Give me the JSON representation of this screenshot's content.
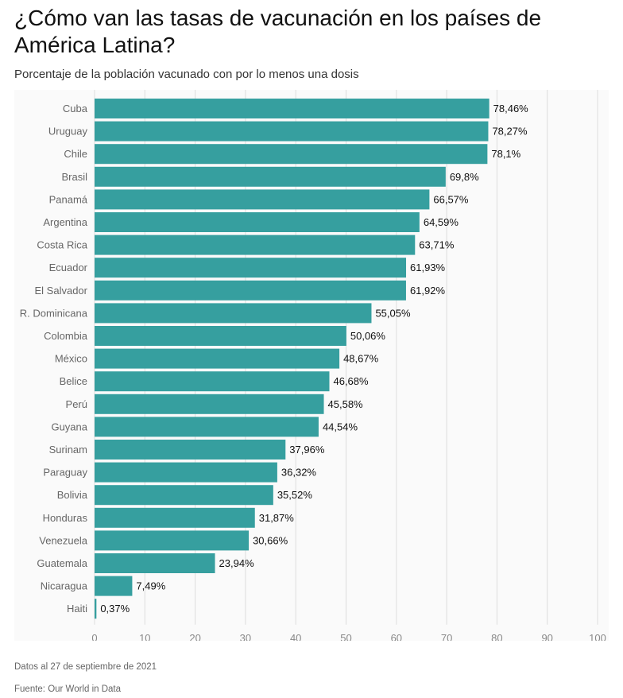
{
  "header": {
    "title": "¿Cómo van las tasas de vacunación en los países de América Latina?",
    "subtitle": "Porcentaje de la población vacunado con por lo menos una dosis"
  },
  "footer": {
    "date_note": "Datos al 27 de septiembre de 2021",
    "source": "Fuente: Our World in Data"
  },
  "colors": {
    "bar": "#369f9f",
    "grid": "#dddddd",
    "background": "#fafafa"
  },
  "chart_data": {
    "type": "bar",
    "orientation": "horizontal",
    "title": "¿Cómo van las tasas de vacunación en los países de América Latina?",
    "subtitle": "Porcentaje de la población vacunado con por lo menos una dosis",
    "xlabel": "",
    "ylabel": "",
    "xlim": [
      0,
      100
    ],
    "xticks": [
      0,
      10,
      20,
      30,
      40,
      50,
      60,
      70,
      80,
      90,
      100
    ],
    "grid": true,
    "categories": [
      "Cuba",
      "Uruguay",
      "Chile",
      "Brasil",
      "Panamá",
      "Argentina",
      "Costa Rica",
      "Ecuador",
      "El Salvador",
      "R. Dominicana",
      "Colombia",
      "México",
      "Belice",
      "Perú",
      "Guyana",
      "Surinam",
      "Paraguay",
      "Bolivia",
      "Honduras",
      "Venezuela",
      "Guatemala",
      "Nicaragua",
      "Haiti"
    ],
    "values": [
      78.46,
      78.27,
      78.1,
      69.8,
      66.57,
      64.59,
      63.71,
      61.93,
      61.92,
      55.05,
      50.06,
      48.67,
      46.68,
      45.58,
      44.54,
      37.96,
      36.32,
      35.52,
      31.87,
      30.66,
      23.94,
      7.49,
      0.37
    ],
    "value_labels": [
      "78,46%",
      "78,27%",
      "78,1%",
      "69,8%",
      "66,57%",
      "64,59%",
      "63,71%",
      "61,93%",
      "61,92%",
      "55,05%",
      "50,06%",
      "48,67%",
      "46,68%",
      "45,58%",
      "44,54%",
      "37,96%",
      "36,32%",
      "35,52%",
      "31,87%",
      "30,66%",
      "23,94%",
      "7,49%",
      "0,37%"
    ]
  }
}
